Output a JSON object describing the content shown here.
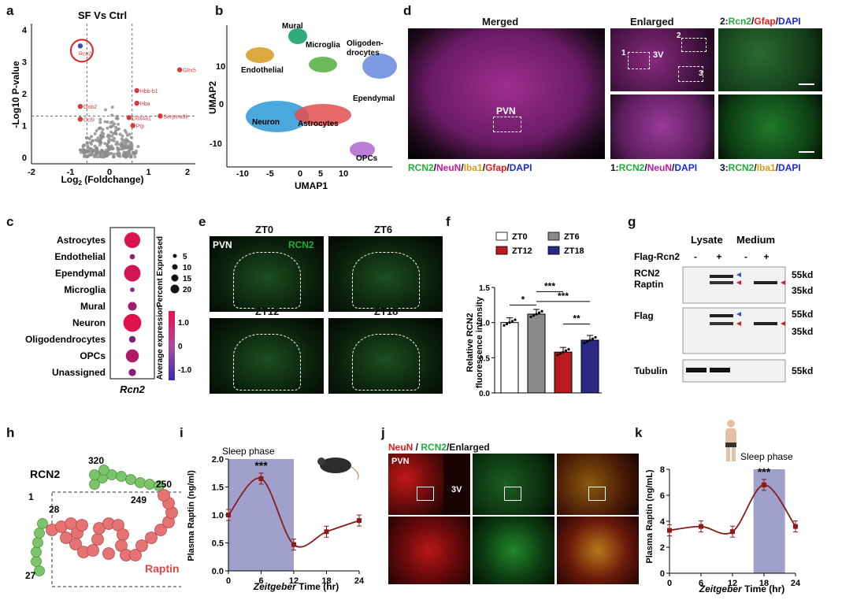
{
  "labels": {
    "a": "a",
    "b": "b",
    "c": "c",
    "d": "d",
    "e": "e",
    "f": "f",
    "g": "g",
    "h": "h",
    "i": "i",
    "j": "j",
    "k": "k"
  },
  "panel_a": {
    "title": "SF Vs Ctrl",
    "ylabel": "-Log10 P-value",
    "xlabel": "Log2 (Foldchange)",
    "highlight": "Rcn2",
    "genes": [
      "Glrx5",
      "Hbb-b1",
      "Hba",
      "Gnb2",
      "Serpina3k",
      "Ddx4a1",
      "Ptp",
      "Ccl9"
    ]
  },
  "panel_b": {
    "xlabel": "UMAP1",
    "ylabel": "UMAP2",
    "clusters": [
      "Mural",
      "Microglia",
      "Oligoden-",
      "drocytes",
      "Endothelial",
      "Ependymal",
      "Neuron",
      "Astrocytes",
      "OPCs"
    ]
  },
  "panel_c": {
    "gene": "Rcn2",
    "cell_types": [
      "Astrocytes",
      "Endothelial",
      "Ependymal",
      "Microglia",
      "Mural",
      "Neuron",
      "Oligodendrocytes",
      "OPCs",
      "Unassigned"
    ],
    "size_legend_title": "Percent Expressed",
    "size_legend": [
      "5",
      "10",
      "15",
      "20"
    ],
    "color_legend_title": "Average expression",
    "color_legend": [
      "1.0",
      "0",
      "-1.0"
    ]
  },
  "panel_d": {
    "merged_title": "Merged",
    "enlarged_title": "Enlarged",
    "inset2_title_parts": [
      "2:",
      "Rcn2",
      "/",
      "Gfap",
      "/",
      "DAPI"
    ],
    "pvn": "PVN",
    "v3": "3V",
    "boxes": [
      "1",
      "2",
      "3"
    ],
    "merged_caption_parts": [
      "RCN2",
      "/",
      "NeuN",
      "/",
      "Iba1",
      "/",
      "Gfap",
      "/",
      "DAPI"
    ],
    "cap1_parts": [
      "1:",
      "RCN2",
      "/",
      "NeuN",
      "/",
      "DAPI"
    ],
    "cap3_parts": [
      "3:",
      "RCN2",
      "/",
      "Iba1",
      "/",
      "DAPI"
    ]
  },
  "panel_e": {
    "tiles": [
      "ZT0",
      "ZT6",
      "ZT12",
      "ZT18"
    ],
    "pvn": "PVN",
    "marker": "RCN2"
  },
  "panel_f": {
    "ylabel_line1": "Relative RCN2",
    "ylabel_line2": "fluorescence intensity",
    "legend": [
      "ZT0",
      "ZT6",
      "ZT12",
      "ZT18"
    ],
    "sig": [
      "*",
      "***",
      "***",
      "**"
    ],
    "ticks": [
      "0.0",
      "0.5",
      "1.0",
      "1.5"
    ]
  },
  "panel_g": {
    "col_groups": [
      "Lysate",
      "Medium"
    ],
    "row_label": "Flag-Rcn2",
    "lanes": [
      "-",
      "+",
      "-",
      "+"
    ],
    "blots": [
      "RCN2",
      "Raptin",
      "Flag",
      "Tubulin"
    ],
    "sizes": [
      "55kd",
      "35kd",
      "55kd",
      "35kd",
      "55kd"
    ]
  },
  "panel_h": {
    "protein": "RCN2",
    "fragment": "Raptin",
    "residues": [
      "320",
      "250",
      "249",
      "1",
      "28",
      "27"
    ]
  },
  "panel_i": {
    "shade_label": "Sleep phase",
    "ylabel": "Plasma Raptin (ng/ml)",
    "xlabel_italic": "Zeitgeber",
    "xlabel_rest": " Time (hr)",
    "sig": "***"
  },
  "panel_j": {
    "title_parts": [
      "NeuN",
      " / ",
      "RCN2",
      "/Enlarged"
    ],
    "pvn": "PVN",
    "v3": "3V"
  },
  "panel_k": {
    "shade_label": "Sleep phase",
    "ylabel": "Plasma Raptin  (ng/mL)",
    "xlabel_italic": "Zeitgeber",
    "xlabel_rest": " Time (hr)",
    "sig": "***"
  },
  "chart_data": [
    {
      "type": "line",
      "panel": "i",
      "x": [
        0,
        6,
        12,
        18,
        24
      ],
      "series": [
        {
          "values": [
            1.0,
            1.65,
            0.47,
            0.7,
            0.9
          ]
        }
      ],
      "xlabel": "Zeitgeber Time (hr)",
      "ylabel": "Plasma Raptin (ng/ml)",
      "xlim": [
        0,
        24
      ],
      "ylim": [
        0,
        2.0
      ],
      "xticks": [
        0,
        6,
        12,
        18,
        24
      ],
      "yticks": [
        0.0,
        0.5,
        1.0,
        1.5,
        2.0
      ],
      "shaded_x": [
        0,
        12
      ],
      "color": "#8b1a1a"
    },
    {
      "type": "line",
      "panel": "k",
      "x": [
        0,
        6,
        12,
        18,
        24
      ],
      "series": [
        {
          "values": [
            3.3,
            3.6,
            3.2,
            6.8,
            3.6
          ]
        }
      ],
      "xlabel": "Zeitgeber Time (hr)",
      "ylabel": "Plasma Raptin (ng/mL)",
      "xlim": [
        0,
        24
      ],
      "ylim": [
        0,
        8
      ],
      "xticks": [
        0,
        6,
        12,
        18,
        24
      ],
      "yticks": [
        0,
        2,
        4,
        6,
        8
      ],
      "shaded_x": [
        16,
        22
      ],
      "color": "#8b1a1a"
    },
    {
      "type": "bar",
      "panel": "f",
      "categories": [
        "ZT0",
        "ZT6",
        "ZT12",
        "ZT18"
      ],
      "values": [
        1.0,
        1.12,
        0.58,
        0.75
      ],
      "colors": [
        "#ffffff",
        "#8a8a8a",
        "#b81c1c",
        "#2a2a86"
      ],
      "ylabel": "Relative RCN2 fluorescence intensity",
      "ylim": [
        0,
        1.5
      ],
      "yticks": [
        0.0,
        0.5,
        1.0,
        1.5
      ]
    },
    {
      "type": "scatter",
      "panel": "a",
      "xlabel": "Log2 (Foldchange)",
      "ylabel": "-Log10 P-value",
      "xlim": [
        -2,
        2.2
      ],
      "ylim": [
        -0.2,
        4.2
      ],
      "xticks": [
        -2,
        -1,
        0,
        1,
        2
      ],
      "yticks": [
        0,
        1,
        2,
        3,
        4
      ],
      "thresholds": {
        "x": [
          -0.58,
          0.58
        ],
        "y": 1.3
      },
      "labeled_points": [
        {
          "name": "Rcn2",
          "x": -0.75,
          "y": 3.5
        },
        {
          "name": "Glrx5",
          "x": 1.8,
          "y": 2.75
        },
        {
          "name": "Hbb-b1",
          "x": 0.7,
          "y": 2.1
        },
        {
          "name": "Hba",
          "x": 0.7,
          "y": 1.7
        },
        {
          "name": "Gnb2",
          "x": -0.75,
          "y": 1.6
        },
        {
          "name": "Serpina3k",
          "x": 1.3,
          "y": 1.3
        },
        {
          "name": "Ddx4a1",
          "x": 0.5,
          "y": 1.25
        },
        {
          "name": "Ptp",
          "x": 0.6,
          "y": 1.0
        },
        {
          "name": "Ccl9",
          "x": -0.75,
          "y": 1.2
        }
      ]
    },
    {
      "type": "scatter",
      "panel": "c",
      "categories": [
        "Astrocytes",
        "Endothelial",
        "Ependymal",
        "Microglia",
        "Mural",
        "Neuron",
        "Oligodendrocytes",
        "OPCs",
        "Unassigned"
      ],
      "percent_expressed": [
        19,
        4,
        20,
        3,
        9,
        22,
        6,
        15,
        7
      ],
      "average_expression": [
        1.2,
        0.3,
        1.1,
        0.1,
        0.5,
        1.3,
        0.0,
        0.7,
        0.2
      ]
    }
  ]
}
